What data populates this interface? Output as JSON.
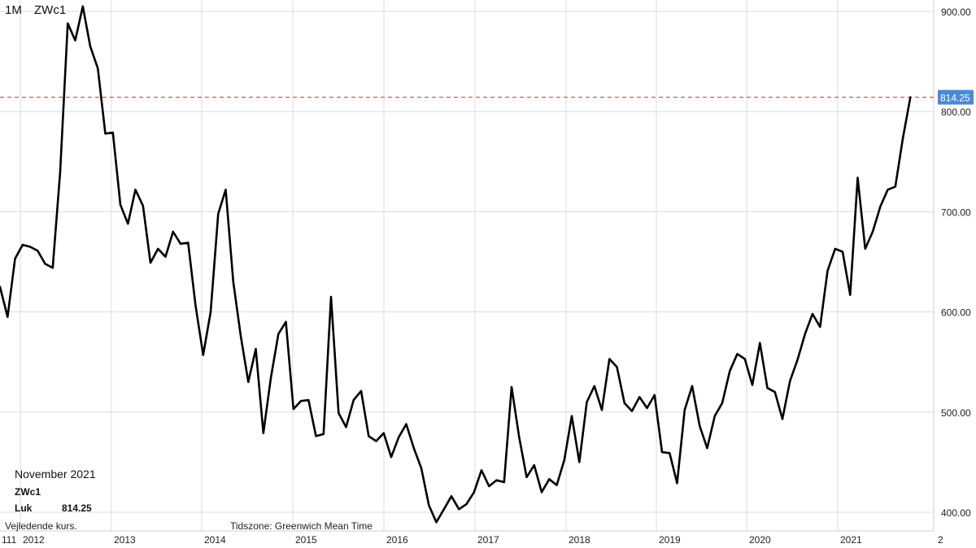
{
  "header": {
    "interval": "1M",
    "symbol": "ZWc1"
  },
  "legend": {
    "month": "November 2021",
    "symbol": "ZWc1",
    "close_label": "Luk",
    "close_value": "814.25"
  },
  "footer": {
    "note": "Vejledende kurs.",
    "timezone": "Tidszone: Greenwich Mean Time"
  },
  "chart_data": {
    "type": "line",
    "title": "ZWc1",
    "xlabel": "",
    "ylabel": "",
    "ylim": [
      385,
      915
    ],
    "y_ticks": [
      "400.00",
      "500.00",
      "600.00",
      "700.00",
      "800.00",
      "900.00"
    ],
    "x_ticks": [
      "111",
      "2012",
      "2013",
      "2014",
      "2015",
      "2016",
      "2017",
      "2018",
      "2019",
      "2020",
      "2021",
      "2"
    ],
    "last_price": {
      "value": 814.25,
      "label": "814.25",
      "color": "#c0392b"
    },
    "line_color": "#000000",
    "grid": true,
    "series": [
      {
        "values": [
          625,
          595,
          653,
          667,
          665,
          661,
          648,
          644,
          740,
          888,
          871,
          905,
          865,
          843,
          778,
          779,
          707,
          688,
          722,
          706,
          649,
          663,
          655,
          680,
          668,
          669,
          606,
          557,
          600,
          698,
          722,
          630,
          576,
          530,
          563,
          479,
          534,
          578,
          590,
          503,
          511,
          512,
          476,
          478,
          615,
          499,
          485,
          512,
          521,
          476,
          471,
          479,
          455,
          475,
          488,
          464,
          444,
          407,
          390,
          403,
          416,
          403,
          408,
          420,
          442,
          426,
          432,
          430,
          525,
          475,
          435,
          447,
          420,
          433,
          427,
          452,
          496,
          450,
          510,
          526,
          502,
          553,
          545,
          509,
          501,
          515,
          504,
          517,
          460,
          459,
          429,
          502,
          526,
          486,
          464,
          496,
          509,
          541,
          558,
          553,
          527,
          569,
          524,
          520,
          493,
          531,
          552,
          578,
          598,
          585,
          641,
          663,
          660,
          617,
          734,
          663,
          680,
          705,
          722,
          725,
          773,
          814.25
        ]
      }
    ]
  }
}
